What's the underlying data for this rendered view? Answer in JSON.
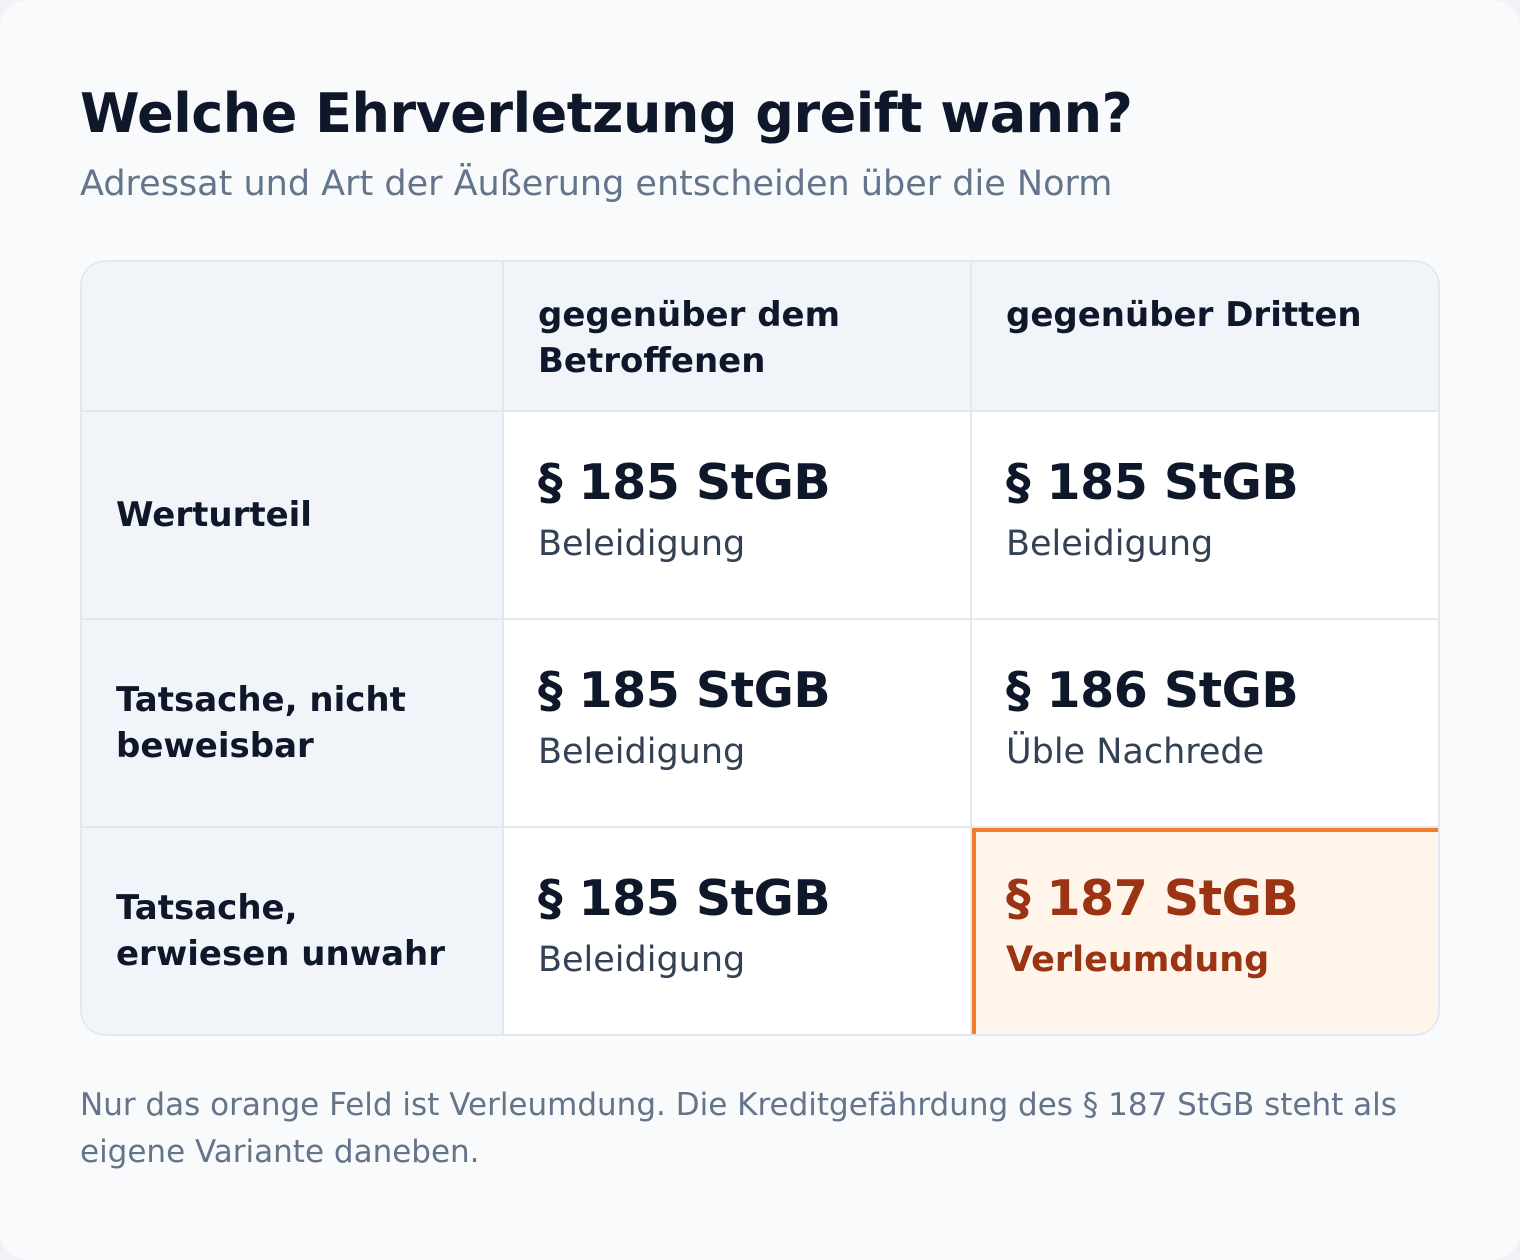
{
  "header": {
    "title": "Welche Ehrverletzung greift wann?",
    "subtitle": "Adressat und Art der Äußerung entscheiden über die Norm"
  },
  "matrix": {
    "columns": [
      {
        "label": "gegenüber dem Betroffenen"
      },
      {
        "label": "gegenüber Dritten"
      }
    ],
    "rows": [
      {
        "label": "Werturteil",
        "cells": [
          {
            "norm": "§ 185 StGB",
            "offense": "Beleidigung"
          },
          {
            "norm": "§ 185 StGB",
            "offense": "Beleidigung"
          }
        ]
      },
      {
        "label": "Tatsache, nicht beweisbar",
        "cells": [
          {
            "norm": "§ 185 StGB",
            "offense": "Beleidigung"
          },
          {
            "norm": "§ 186 StGB",
            "offense": "Üble Nachrede"
          }
        ]
      },
      {
        "label": "Tatsache, erwiesen unwahr",
        "cells": [
          {
            "norm": "§ 185 StGB",
            "offense": "Beleidigung"
          },
          {
            "norm": "§ 187 StGB",
            "offense": "Verleumdung"
          }
        ]
      }
    ]
  },
  "colors": {
    "highlight_border": "#f47b2a",
    "highlight_fill": "#fff5eb",
    "highlight_text": "#9a3412"
  },
  "footnote": "Nur das orange Feld ist Verleumdung. Die Kreditgefährdung des § 187 StGB steht als eigene Variante daneben."
}
